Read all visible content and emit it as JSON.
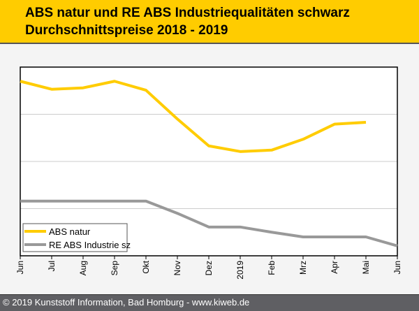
{
  "header": {
    "title_line1": "ABS natur und RE ABS Industriequalitäten schwarz",
    "title_line2": "Durchschnittspreise 2018 - 2019"
  },
  "footer": {
    "text": "© 2019 Kunststoff Information, Bad Homburg - www.kiweb.de"
  },
  "colors": {
    "header_bg": "#ffcc00",
    "abs_natur": "#ffcc00",
    "re_abs": "#999999",
    "footer_bg": "#5f5f63"
  },
  "chart_data": {
    "type": "line",
    "title": "ABS natur und RE ABS Industriequalitäten schwarz Durchschnittspreise 2018 - 2019",
    "xlabel": "",
    "ylabel": "",
    "categories": [
      "Jun",
      "Jul",
      "Aug",
      "Sep",
      "Okt",
      "Nov",
      "Dez",
      "2019",
      "Feb",
      "Mrz",
      "Apr",
      "Mai",
      "Jun"
    ],
    "ylim": [
      0,
      4
    ],
    "y_gridlines": [
      1,
      2,
      3
    ],
    "y_units": "relative (no axis labels shown)",
    "grid": true,
    "legend_position": "bottom-left",
    "series": [
      {
        "name": "ABS natur",
        "color": "#ffcc00",
        "values": [
          3.7,
          3.53,
          3.56,
          3.7,
          3.51,
          2.9,
          2.33,
          2.21,
          2.24,
          2.47,
          2.79,
          2.83,
          null
        ]
      },
      {
        "name": "RE ABS Industrie sz",
        "color": "#999999",
        "values": [
          1.16,
          1.16,
          1.16,
          1.16,
          1.16,
          0.9,
          0.61,
          0.61,
          0.5,
          0.4,
          0.4,
          0.4,
          0.21
        ]
      }
    ]
  }
}
